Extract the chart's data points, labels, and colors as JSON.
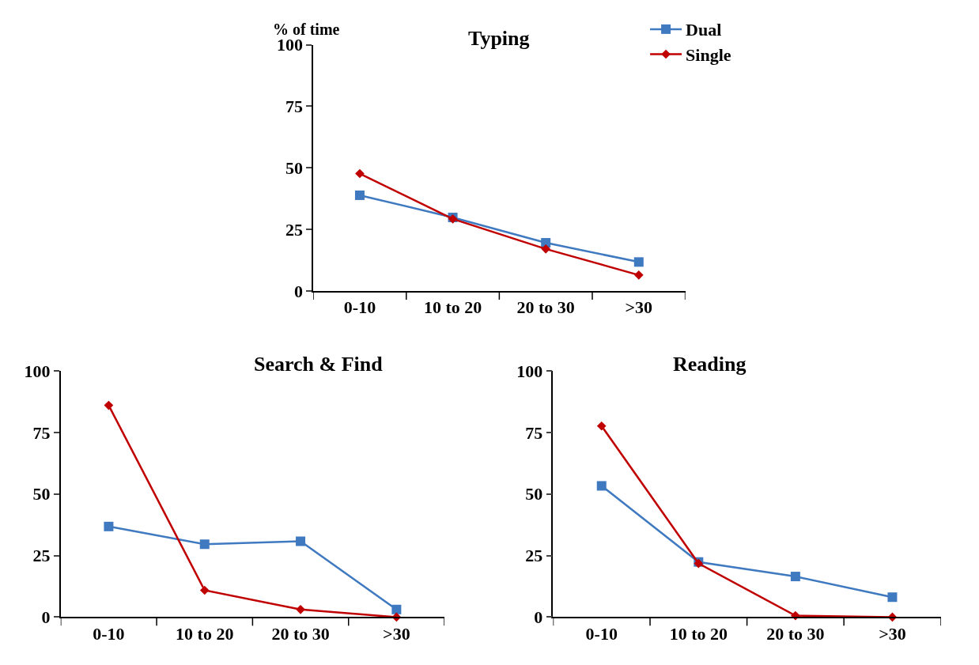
{
  "chart_data": [
    {
      "type": "line",
      "title": "Typing",
      "ylabel": "% of time",
      "categories": [
        "0-10",
        "10 to 20",
        "20 to 30",
        ">30"
      ],
      "ylim": [
        0,
        100
      ],
      "yticks": [
        0,
        25,
        50,
        75,
        100
      ],
      "legend": "top right",
      "series": [
        {
          "name": "Dual",
          "color": "#3f79c0",
          "marker": "square",
          "values": [
            38.9,
            29.9,
            19.6,
            11.8
          ]
        },
        {
          "name": "Single",
          "color": "#c00000",
          "marker": "diamond",
          "values": [
            47.7,
            29.3,
            17.1,
            6.5
          ]
        }
      ]
    },
    {
      "type": "line",
      "title": "Search & Find",
      "categories": [
        "0-10",
        "10 to 20",
        "20 to 30",
        ">30"
      ],
      "ylim": [
        0,
        100
      ],
      "yticks": [
        0,
        25,
        50,
        75,
        100
      ],
      "legend": false,
      "series": [
        {
          "color": "#3f79c0",
          "marker": "square",
          "values": [
            36.8,
            29.6,
            30.8,
            3.1
          ]
        },
        {
          "color": "#c00000",
          "marker": "diamond",
          "values": [
            86,
            10.9,
            3.1,
            0
          ]
        }
      ]
    },
    {
      "type": "line",
      "title": "Reading",
      "categories": [
        "0-10",
        "10 to 20",
        "20 to 30",
        ">30"
      ],
      "ylim": [
        0,
        100
      ],
      "yticks": [
        0,
        25,
        50,
        75,
        100
      ],
      "legend": false,
      "series": [
        {
          "color": "#3f79c0",
          "marker": "square",
          "values": [
            53.3,
            22.4,
            16.5,
            8.1
          ]
        },
        {
          "color": "#c00000",
          "marker": "diamond",
          "values": [
            77.6,
            21.8,
            0.6,
            0
          ]
        }
      ]
    }
  ]
}
